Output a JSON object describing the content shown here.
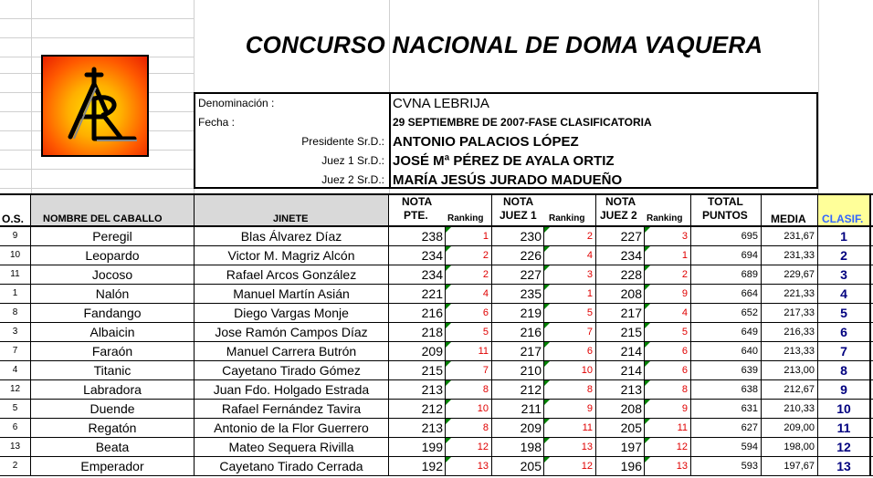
{
  "title": "CONCURSO NACIONAL DE DOMA VAQUERA",
  "logo": {
    "icon": "ar-logo-icon",
    "colors": [
      "#ffe000",
      "#ff5a00",
      "#e82000"
    ]
  },
  "info": {
    "denominacion_label": "Denominación :",
    "denominacion_value": "CVNA LEBRIJA",
    "fecha_label": "Fecha :",
    "fecha_value": "29  SEPTIEMBRE DE 2007-FASE CLASIFICATORIA",
    "presidente_label": "Presidente Sr.D.:",
    "presidente_value": "ANTONIO PALACIOS LÓPEZ",
    "juez1_label": "Juez 1 Sr.D.:",
    "juez1_value": "JOSÉ Mª PÉREZ DE AYALA ORTIZ",
    "juez2_label": "Juez 2 Sr.D.:",
    "juez2_value": "MARÍA JESÚS JURADO MADUEÑO"
  },
  "headers": {
    "os": "O.S.",
    "horse": "NOMBRE DEL CABALLO",
    "rider": "JINETE",
    "nota": "NOTA",
    "pte": "PTE.",
    "ranking": "Ranking",
    "juez1": "JUEZ 1",
    "juez2": "JUEZ 2",
    "total_1": "TOTAL",
    "total_2": "PUNTOS",
    "media": "MEDIA",
    "clasif": "CLASIF."
  },
  "rows": [
    {
      "os": "9",
      "horse": "Peregil",
      "rider": "Blas Álvarez Díaz",
      "pte": "238",
      "r1": "1",
      "j1": "230",
      "r2": "2",
      "j2": "227",
      "r3": "3",
      "total": "695",
      "media": "231,67",
      "clasif": "1"
    },
    {
      "os": "10",
      "horse": "Leopardo",
      "rider": "Victor M. Magriz Alcón",
      "pte": "234",
      "r1": "2",
      "j1": "226",
      "r2": "4",
      "j2": "234",
      "r3": "1",
      "total": "694",
      "media": "231,33",
      "clasif": "2"
    },
    {
      "os": "11",
      "horse": "Jocoso",
      "rider": "Rafael Arcos González",
      "pte": "234",
      "r1": "2",
      "j1": "227",
      "r2": "3",
      "j2": "228",
      "r3": "2",
      "total": "689",
      "media": "229,67",
      "clasif": "3"
    },
    {
      "os": "1",
      "horse": "Nalón",
      "rider": "Manuel Martín Asián",
      "pte": "221",
      "r1": "4",
      "j1": "235",
      "r2": "1",
      "j2": "208",
      "r3": "9",
      "total": "664",
      "media": "221,33",
      "clasif": "4"
    },
    {
      "os": "8",
      "horse": "Fandango",
      "rider": "Diego Vargas Monje",
      "pte": "216",
      "r1": "6",
      "j1": "219",
      "r2": "5",
      "j2": "217",
      "r3": "4",
      "total": "652",
      "media": "217,33",
      "clasif": "5"
    },
    {
      "os": "3",
      "horse": "Albaicin",
      "rider": "Jose Ramón Campos Díaz",
      "pte": "218",
      "r1": "5",
      "j1": "216",
      "r2": "7",
      "j2": "215",
      "r3": "5",
      "total": "649",
      "media": "216,33",
      "clasif": "6"
    },
    {
      "os": "7",
      "horse": "Faraón",
      "rider": "Manuel Carrera Butrón",
      "pte": "209",
      "r1": "11",
      "j1": "217",
      "r2": "6",
      "j2": "214",
      "r3": "6",
      "total": "640",
      "media": "213,33",
      "clasif": "7"
    },
    {
      "os": "4",
      "horse": "Titanic",
      "rider": "Cayetano Tirado Gómez",
      "pte": "215",
      "r1": "7",
      "j1": "210",
      "r2": "10",
      "j2": "214",
      "r3": "6",
      "total": "639",
      "media": "213,00",
      "clasif": "8"
    },
    {
      "os": "12",
      "horse": "Labradora",
      "rider": "Juan Fdo. Holgado Estrada",
      "pte": "213",
      "r1": "8",
      "j1": "212",
      "r2": "8",
      "j2": "213",
      "r3": "8",
      "total": "638",
      "media": "212,67",
      "clasif": "9"
    },
    {
      "os": "5",
      "horse": "Duende",
      "rider": "Rafael Fernández Tavira",
      "pte": "212",
      "r1": "10",
      "j1": "211",
      "r2": "9",
      "j2": "208",
      "r3": "9",
      "total": "631",
      "media": "210,33",
      "clasif": "10"
    },
    {
      "os": "6",
      "horse": "Regatón",
      "rider": "Antonio de la Flor Guerrero",
      "pte": "213",
      "r1": "8",
      "j1": "209",
      "r2": "11",
      "j2": "205",
      "r3": "11",
      "total": "627",
      "media": "209,00",
      "clasif": "11"
    },
    {
      "os": "13",
      "horse": "Beata",
      "rider": "Mateo Sequera Rivilla",
      "pte": "199",
      "r1": "12",
      "j1": "198",
      "r2": "13",
      "j2": "197",
      "r3": "12",
      "total": "594",
      "media": "198,00",
      "clasif": "12"
    },
    {
      "os": "2",
      "horse": "Emperador",
      "rider": "Cayetano Tirado Cerrada",
      "pte": "192",
      "r1": "13",
      "j1": "205",
      "r2": "12",
      "j2": "196",
      "r3": "13",
      "total": "593",
      "media": "197,67",
      "clasif": "13"
    }
  ]
}
